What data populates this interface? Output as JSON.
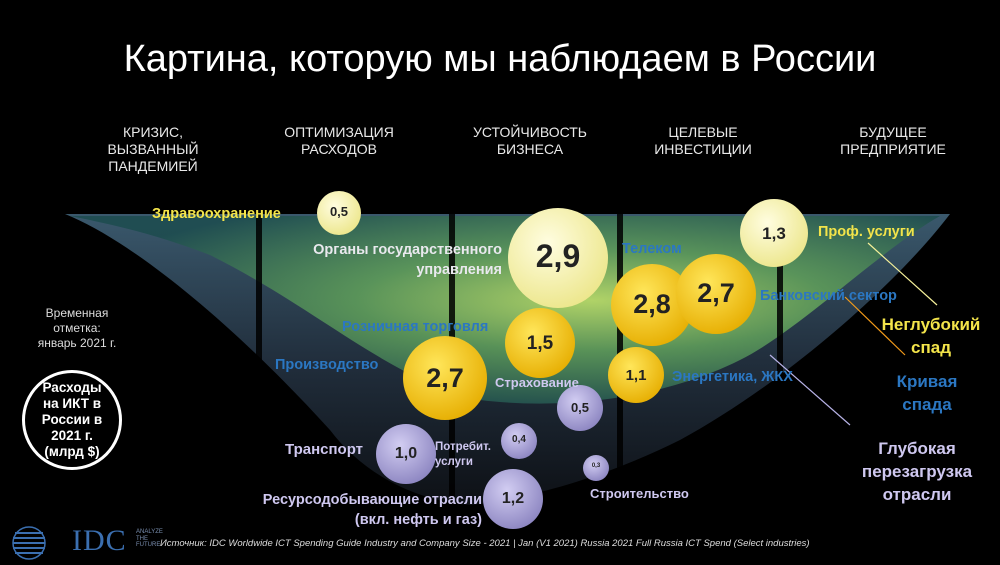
{
  "title": "Картина, которую мы наблюдаем в России",
  "phases": [
    "КРИЗИС,\nВЫЗВАННЫЙ\nПАНДЕМИЕЙ",
    "ОПТИМИЗАЦИЯ\nРАСХОДОВ",
    "УСТОЙЧИВОСТЬ\nБИЗНЕСА",
    "ЦЕЛЕВЫЕ\nИНВЕСТИЦИИ",
    "БУДУЩЕЕ\nПРЕДПРИЯТИЕ"
  ],
  "timestamp_note": "Временная\nотметка:\nянварь 2021 г.",
  "total_badge": "Расходы\nна ИКТ в\nРоссии в\n2021 г.\n(млрд $)",
  "industries": [
    {
      "label": "Здравоохранение",
      "value": "0,5",
      "category": "shallow"
    },
    {
      "label": "Органы государственного\nуправления",
      "value": "2,9",
      "category": "shallow"
    },
    {
      "label": "Проф. услуги",
      "value": "1,3",
      "category": "shallow"
    },
    {
      "label": "Телеком",
      "value": "2,8",
      "category": "curve"
    },
    {
      "label": "Банковский сектор",
      "value": "2,7",
      "category": "curve"
    },
    {
      "label": "Розничная торговля",
      "value": "1,5",
      "category": "curve"
    },
    {
      "label": "Производство",
      "value": "2,7",
      "category": "curve"
    },
    {
      "label": "Энергетика, ЖКХ",
      "value": "1,1",
      "category": "curve"
    },
    {
      "label": "Страхование",
      "value": "0,5",
      "category": "deep"
    },
    {
      "label": "Транспорт",
      "value": "1,0",
      "category": "deep"
    },
    {
      "label": "Потребит.\nуслуги",
      "value": "0,4",
      "category": "deep"
    },
    {
      "label": "Строительство",
      "value": "0,3",
      "category": "deep"
    },
    {
      "label": "Ресурсодобывающие отрасли\n(вкл. нефть и газ)",
      "value": "1,2",
      "category": "deep"
    }
  ],
  "legend": {
    "shallow": "Неглубокий\nспад",
    "curve": "Кривая\nспада",
    "deep": "Глубокая\nперезагрузка\nотрасли"
  },
  "colors": {
    "shallow": "#f6f19a",
    "curve": "#f2c400",
    "deep": "#a9a3d8",
    "label_blue": "#2b77c2"
  },
  "source": "Источник: IDC Worldwide ICT Spending Guide Industry and Company Size - 2021 | Jan (V1 2021) Russia 2021 Full Russia ICT Spend (Select industries)",
  "logo": {
    "text": "IDC",
    "tagline": "ANALYZE\nTHE\nFUTURE"
  }
}
